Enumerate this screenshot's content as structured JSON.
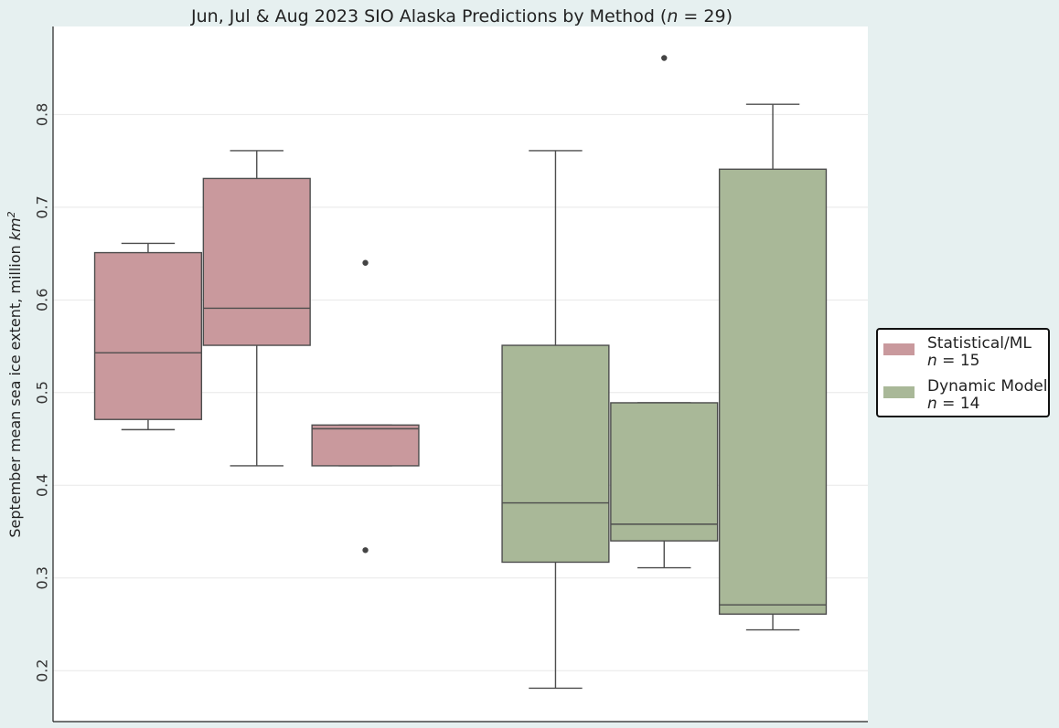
{
  "chart_data": {
    "type": "box",
    "title": "Jun, Jul & Aug 2023 SIO Alaska Predictions by Method (n = 29)",
    "title_parts": {
      "prefix": "Jun, Jul & Aug 2023 SIO Alaska Predictions by Method (",
      "n_var": "n",
      "n_rest": " = 29)"
    },
    "ylabel": "September mean sea ice extent, million km²",
    "ylabel_parts": {
      "text": "September mean sea ice extent, million ",
      "unit": "km",
      "sup": "2"
    },
    "xlabel": "",
    "ylim": [
      0.145,
      0.895
    ],
    "yticks": [
      0.2,
      0.3,
      0.4,
      0.5,
      0.6,
      0.7,
      0.8
    ],
    "yticklabels": [
      "0.2",
      "0.3",
      "0.4",
      "0.5",
      "0.6",
      "0.7",
      "0.8"
    ],
    "grid": true,
    "legend_position": "right",
    "groups": [
      {
        "name": "Statistical/ML",
        "n_label": "n = 15",
        "color": "#c9999d",
        "boxes": [
          {
            "whisker_low": 0.46,
            "q1": 0.471,
            "median": 0.543,
            "q3": 0.651,
            "whisker_high": 0.661,
            "outliers": []
          },
          {
            "whisker_low": 0.421,
            "q1": 0.551,
            "median": 0.591,
            "q3": 0.731,
            "whisker_high": 0.761,
            "outliers": []
          },
          {
            "whisker_low": 0.421,
            "q1": 0.421,
            "median": 0.461,
            "q3": 0.465,
            "whisker_high": 0.465,
            "outliers": [
              0.64,
              0.33
            ]
          }
        ]
      },
      {
        "name": "Dynamic Model",
        "n_label": "n = 14",
        "color": "#a9b898",
        "boxes": [
          {
            "whisker_low": 0.181,
            "q1": 0.317,
            "median": 0.381,
            "q3": 0.551,
            "whisker_high": 0.761,
            "outliers": []
          },
          {
            "whisker_low": 0.311,
            "q1": 0.34,
            "median": 0.358,
            "q3": 0.489,
            "whisker_high": 0.489,
            "outliers": [
              0.861
            ]
          },
          {
            "whisker_low": 0.244,
            "q1": 0.261,
            "median": 0.271,
            "q3": 0.741,
            "whisker_high": 0.811,
            "outliers": []
          }
        ]
      }
    ],
    "legend": [
      {
        "label": "Statistical/ML",
        "n_var": "n",
        "n_rest": " = 15",
        "color": "#c9999d"
      },
      {
        "label": "Dynamic Model",
        "n_var": "n",
        "n_rest": " = 14",
        "color": "#a9b898"
      }
    ]
  }
}
